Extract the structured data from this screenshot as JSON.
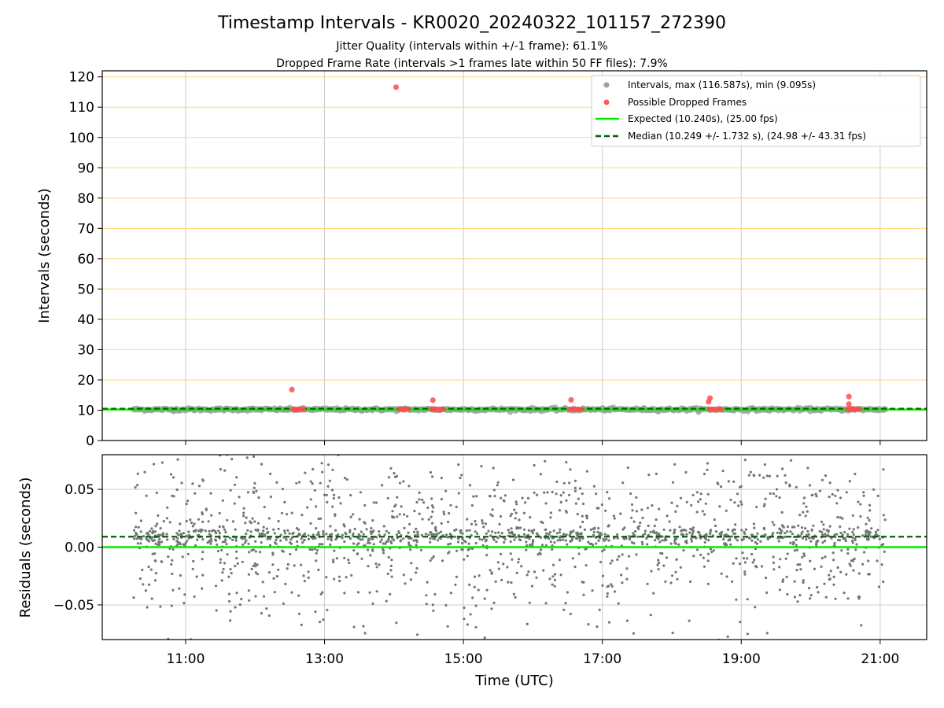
{
  "title": "Timestamp Intervals - KR0020_20240322_101157_272390",
  "subtitle_line1": "Jitter Quality (intervals within +/-1 frame): 61.1%",
  "subtitle_line2": "Dropped Frame Rate (intervals >1 frames late within 50 FF files): 7.9%",
  "chart_data": [
    {
      "type": "scatter",
      "panel": "top",
      "ylabel": "Intervals (seconds)",
      "xlabel": "",
      "xlim_hours": [
        9.8,
        21.67
      ],
      "ylim": [
        0,
        122
      ],
      "yticks": [
        0,
        10,
        20,
        30,
        40,
        50,
        60,
        70,
        80,
        90,
        100,
        110,
        120
      ],
      "grid": {
        "horizontal_color": "#ffd773",
        "vertical_color": "#cccccc"
      },
      "legend_position": "top-right",
      "legend": [
        {
          "label": "Intervals, max (116.587s), min (9.095s)",
          "kind": "marker",
          "color": "#9e9e9e"
        },
        {
          "label": "Possible Dropped Frames",
          "kind": "marker",
          "color": "#ff4d4d"
        },
        {
          "label": "Expected (10.240s), (25.00 fps)",
          "kind": "line",
          "color": "#00ee00"
        },
        {
          "label": "Median (10.249 +/- 1.732 s), (24.98 +/- 43.31 fps)",
          "kind": "dashed",
          "color": "#006400"
        }
      ],
      "expected_interval": 10.24,
      "median_interval": 10.249,
      "interval_band": {
        "x_start": 10.25,
        "x_end": 21.08,
        "y_center": 10.24
      },
      "dropped_frames": [
        {
          "x": 12.53,
          "y": 16.8
        },
        {
          "x": 12.55,
          "y": 10.3
        },
        {
          "x": 12.58,
          "y": 10.3
        },
        {
          "x": 12.62,
          "y": 10.3
        },
        {
          "x": 12.65,
          "y": 10.3
        },
        {
          "x": 12.69,
          "y": 10.3
        },
        {
          "x": 14.03,
          "y": 116.6
        },
        {
          "x": 14.08,
          "y": 10.3
        },
        {
          "x": 14.12,
          "y": 10.3
        },
        {
          "x": 14.16,
          "y": 10.3
        },
        {
          "x": 14.2,
          "y": 10.3
        },
        {
          "x": 14.56,
          "y": 13.3
        },
        {
          "x": 14.54,
          "y": 10.3
        },
        {
          "x": 14.58,
          "y": 10.3
        },
        {
          "x": 14.62,
          "y": 10.3
        },
        {
          "x": 14.66,
          "y": 10.3
        },
        {
          "x": 14.7,
          "y": 10.3
        },
        {
          "x": 16.55,
          "y": 13.4
        },
        {
          "x": 16.53,
          "y": 10.3
        },
        {
          "x": 16.57,
          "y": 10.3
        },
        {
          "x": 16.61,
          "y": 10.3
        },
        {
          "x": 16.65,
          "y": 10.3
        },
        {
          "x": 16.7,
          "y": 10.3
        },
        {
          "x": 18.55,
          "y": 14.0
        },
        {
          "x": 18.53,
          "y": 12.8
        },
        {
          "x": 18.55,
          "y": 10.3
        },
        {
          "x": 18.59,
          "y": 10.3
        },
        {
          "x": 18.63,
          "y": 10.3
        },
        {
          "x": 18.67,
          "y": 10.3
        },
        {
          "x": 18.71,
          "y": 10.3
        },
        {
          "x": 20.55,
          "y": 14.5
        },
        {
          "x": 20.55,
          "y": 12.0
        },
        {
          "x": 20.53,
          "y": 10.3
        },
        {
          "x": 20.57,
          "y": 10.3
        },
        {
          "x": 20.61,
          "y": 10.3
        },
        {
          "x": 20.65,
          "y": 10.3
        },
        {
          "x": 20.7,
          "y": 10.3
        }
      ]
    },
    {
      "type": "scatter",
      "panel": "bottom",
      "ylabel": "Residuals (seconds)",
      "xlabel": "Time (UTC)",
      "xlim_hours": [
        9.8,
        21.67
      ],
      "ylim": [
        -0.08,
        0.08
      ],
      "yticks": [
        -0.05,
        0.0,
        0.05
      ],
      "ytick_labels": [
        "−0.05",
        "0.00",
        "0.05"
      ],
      "xticks_hours": [
        11,
        13,
        15,
        17,
        19,
        21
      ],
      "xtick_labels": [
        "11:00",
        "13:00",
        "15:00",
        "17:00",
        "19:00",
        "21:00"
      ],
      "grid": {
        "color": "#cccccc"
      },
      "expected_residual": 0.0,
      "median_residual": 0.009,
      "residual_points": {
        "count": 1800,
        "x_start": 10.25,
        "x_end": 21.08,
        "center": 0.009,
        "spread": 0.035,
        "color": "#757575"
      }
    }
  ]
}
